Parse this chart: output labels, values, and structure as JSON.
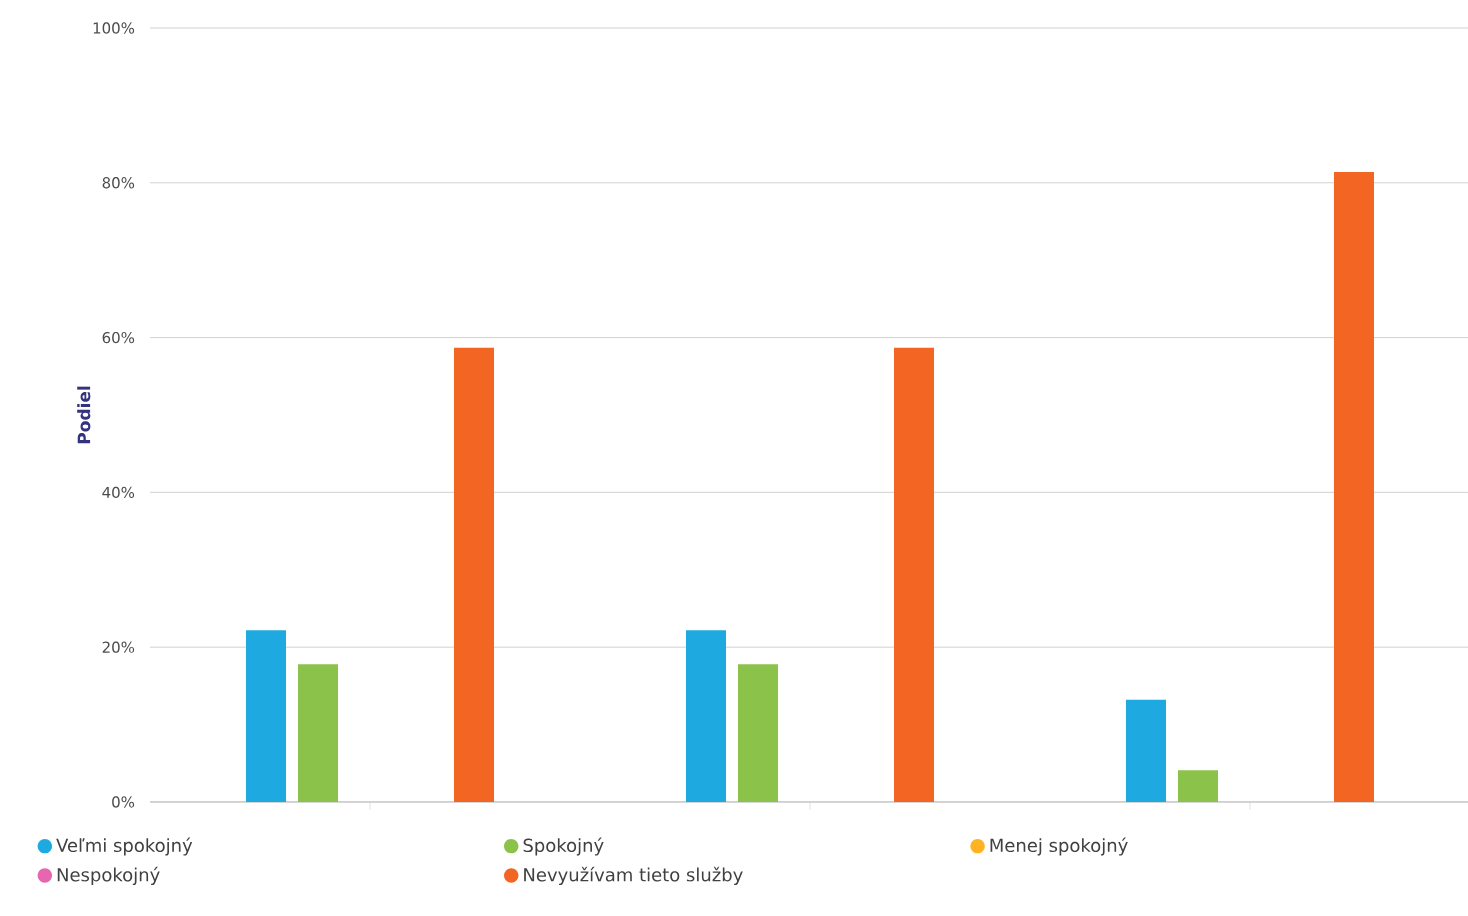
{
  "chart_data": {
    "type": "bar",
    "ylabel": "Podiel",
    "categories": [
      null,
      null,
      null
    ],
    "series": [
      {
        "name": "Veľmi spokojný",
        "color": "#1eaae1",
        "values": [
          22.2,
          22.2,
          13.2
        ]
      },
      {
        "name": "Spokojný",
        "color": "#8bc34a",
        "values": [
          17.8,
          17.8,
          4.1
        ]
      },
      {
        "name": "Menej spokojný",
        "color": "#ffb322",
        "values": [
          0,
          0,
          0
        ]
      },
      {
        "name": "Nespokojný",
        "color": "#e667af",
        "values": [
          0,
          0,
          0
        ]
      },
      {
        "name": "Nevyužívam tieto služby",
        "color": "#f26522",
        "values": [
          58.7,
          58.7,
          81.4
        ]
      }
    ],
    "ylim": [
      0,
      100
    ],
    "yticks": [
      {
        "value": 0,
        "label": "0%"
      },
      {
        "value": 20,
        "label": "20%"
      },
      {
        "value": 40,
        "label": "40%"
      },
      {
        "value": 60,
        "label": "60%"
      },
      {
        "value": 80,
        "label": "80%"
      },
      {
        "value": 100,
        "label": "100%"
      }
    ],
    "grid": "y",
    "legend": "bottom"
  }
}
